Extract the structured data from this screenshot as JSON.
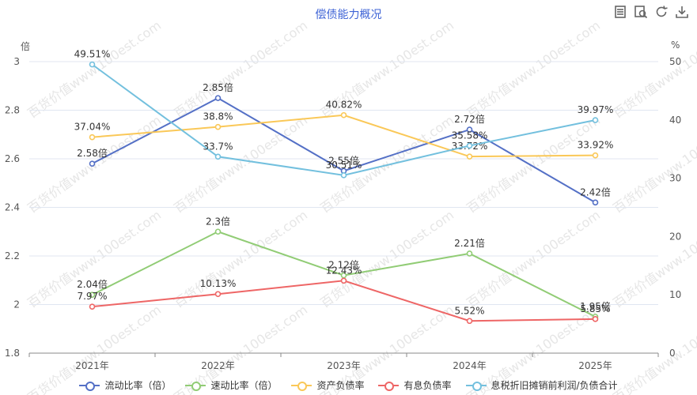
{
  "title": "偿债能力概况",
  "toolbar": {
    "icons": [
      "data-view-icon",
      "restore-icon",
      "refresh-icon",
      "save-image-icon"
    ]
  },
  "watermark": "百货价值www.100est.com",
  "axis_units": {
    "left": "倍",
    "right": "%"
  },
  "legend": [
    {
      "name": "流动比率（倍）",
      "color": "#5470c6"
    },
    {
      "name": "速动比率（倍）",
      "color": "#91cc75"
    },
    {
      "name": "资产负债率",
      "color": "#fac858"
    },
    {
      "name": "有息负债率",
      "color": "#ee6666"
    },
    {
      "name": "息税折旧摊销前利润/负债合计",
      "color": "#73c0de"
    }
  ],
  "chart_data": {
    "type": "line",
    "categories": [
      "2021年",
      "2022年",
      "2023年",
      "2024年",
      "2025年"
    ],
    "y_left": {
      "min": 1.8,
      "max": 3,
      "ticks": [
        "1.8",
        "2",
        "2.2",
        "2.4",
        "2.6",
        "2.8",
        "3"
      ]
    },
    "y_right": {
      "min": 0,
      "max": 50,
      "ticks": [
        "0",
        "10",
        "20",
        "30",
        "40",
        "50"
      ]
    },
    "grid": "horizontal",
    "legend_position": "bottom",
    "series": [
      {
        "name": "流动比率（倍）",
        "axis": "left",
        "color": "#5470c6",
        "values": [
          2.58,
          2.85,
          2.55,
          2.72,
          2.42
        ],
        "labels": [
          "2.58倍",
          "2.85倍",
          "2.55倍",
          "2.72倍",
          "2.42倍"
        ]
      },
      {
        "name": "速动比率（倍）",
        "axis": "left",
        "color": "#91cc75",
        "values": [
          2.04,
          2.3,
          2.12,
          2.21,
          1.95
        ],
        "labels": [
          "2.04倍",
          "2.3倍",
          "2.12倍",
          "2.21倍",
          "1.95倍"
        ]
      },
      {
        "name": "资产负债率",
        "axis": "right",
        "color": "#fac858",
        "values": [
          37.04,
          38.8,
          40.82,
          33.72,
          33.92
        ],
        "labels": [
          "37.04%",
          "38.8%",
          "40.82%",
          "33.72%",
          "33.92%"
        ]
      },
      {
        "name": "有息负债率",
        "axis": "right",
        "color": "#ee6666",
        "values": [
          7.97,
          10.13,
          12.43,
          5.52,
          5.85
        ],
        "labels": [
          "7.97%",
          "10.13%",
          "12.43%",
          "5.52%",
          "5.85%"
        ]
      },
      {
        "name": "息税折旧摊销前利润/负债合计",
        "axis": "right",
        "color": "#73c0de",
        "values": [
          49.51,
          33.7,
          30.51,
          35.58,
          39.97
        ],
        "labels": [
          "49.51%",
          "33.7%",
          "30.51%",
          "35.58%",
          "39.97%"
        ]
      }
    ]
  }
}
